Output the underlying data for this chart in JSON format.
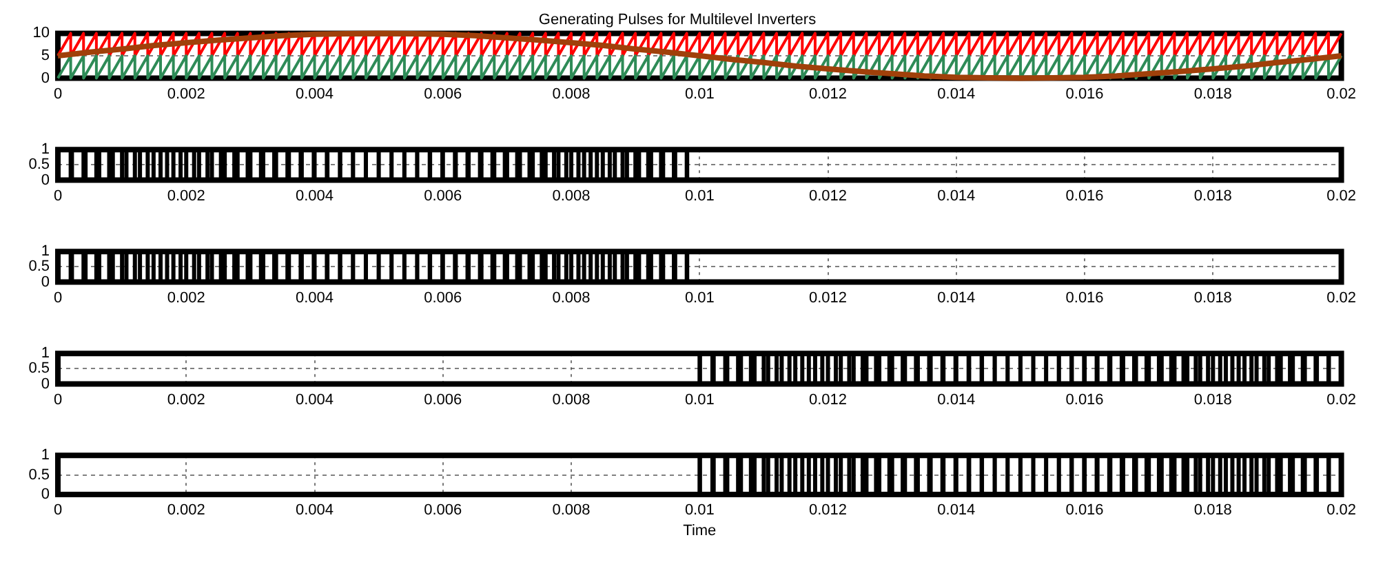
{
  "chart_data": [
    {
      "type": "line",
      "title": "Generating Pulses for Multilevel Inverters",
      "xlim": [
        0,
        0.02
      ],
      "xticks": [
        0,
        0.002,
        0.004,
        0.006,
        0.008,
        0.01,
        0.012,
        0.014,
        0.016,
        0.018,
        0.02
      ],
      "ylim": [
        0,
        10
      ],
      "yticks": [
        0,
        5,
        10
      ],
      "grid": true,
      "x": [
        0,
        0.0002,
        0.0002,
        0.0004,
        0.0004,
        0.0006,
        0.0006,
        0.0008,
        0.0008,
        0.001,
        0.001,
        0.0012,
        0.0012,
        0.0014,
        0.0014,
        0.0016,
        0.0016,
        0.0018,
        0.0018,
        0.002,
        0.002,
        0.0022,
        0.0022,
        0.0024,
        0.0024,
        0.0026,
        0.0026,
        0.0028,
        0.0028,
        0.003,
        0.003,
        0.0032,
        0.0032,
        0.0034,
        0.0034,
        0.0036,
        0.0036,
        0.0038,
        0.0038,
        0.004,
        0.004,
        0.0042,
        0.0042,
        0.0044,
        0.0044,
        0.0046,
        0.0046,
        0.0048,
        0.0048,
        0.005,
        0.005,
        0.0052,
        0.0052,
        0.0054,
        0.0054,
        0.0056,
        0.0056,
        0.0058,
        0.0058,
        0.006,
        0.006,
        0.0062,
        0.0062,
        0.0064,
        0.0064,
        0.0066,
        0.0066,
        0.0068,
        0.0068,
        0.007,
        0.007,
        0.0072,
        0.0072,
        0.0074,
        0.0074,
        0.0076,
        0.0076,
        0.0078,
        0.0078,
        0.008,
        0.008,
        0.0082,
        0.0082,
        0.0084,
        0.0084,
        0.0086,
        0.0086,
        0.0088,
        0.0088,
        0.009,
        0.009,
        0.0092,
        0.0092,
        0.0094,
        0.0094,
        0.0096,
        0.0096,
        0.0098,
        0.0098,
        0.01,
        0.01,
        0.0102,
        0.0102,
        0.0104,
        0.0104,
        0.0106,
        0.0106,
        0.0108,
        0.0108,
        0.011,
        0.011,
        0.0112,
        0.0112,
        0.0114,
        0.0114,
        0.0116,
        0.0116,
        0.0118,
        0.0118,
        0.012,
        0.012,
        0.0122,
        0.0122,
        0.0124,
        0.0124,
        0.0126,
        0.0126,
        0.0128,
        0.0128,
        0.013,
        0.013,
        0.0132,
        0.0132,
        0.0134,
        0.0134,
        0.0136,
        0.0136,
        0.0138,
        0.0138,
        0.014,
        0.014,
        0.0142,
        0.0142,
        0.0144,
        0.0144,
        0.0146,
        0.0146,
        0.0148,
        0.0148,
        0.015,
        0.015,
        0.0152,
        0.0152,
        0.0154,
        0.0154,
        0.0156,
        0.0156,
        0.0158,
        0.0158,
        0.016,
        0.016,
        0.0162,
        0.0162,
        0.0164,
        0.0164,
        0.0166,
        0.0166,
        0.0168,
        0.0168,
        0.017,
        0.017,
        0.0172,
        0.0172,
        0.0174,
        0.0174,
        0.0176,
        0.0176,
        0.0178,
        0.0178,
        0.018,
        0.018,
        0.0182,
        0.0182,
        0.0184,
        0.0184,
        0.0186,
        0.0186,
        0.0188,
        0.0188,
        0.019,
        0.019,
        0.0192,
        0.0192,
        0.0194,
        0.0194,
        0.0196,
        0.0196,
        0.0198,
        0.0198,
        0.02
      ],
      "series": [
        {
          "color": "#ff0000",
          "values": [
            5,
            10,
            5,
            10,
            5,
            10,
            5,
            10,
            5,
            10,
            5,
            10,
            5,
            10,
            5,
            10,
            5,
            10,
            5,
            10,
            5,
            10,
            5,
            10,
            5,
            10,
            5,
            10,
            5,
            10,
            5,
            10,
            5,
            10,
            5,
            10,
            5,
            10,
            5,
            10,
            5,
            10,
            5,
            10,
            5,
            10,
            5,
            10,
            5,
            10,
            5,
            10,
            5,
            10,
            5,
            10,
            5,
            10,
            5,
            10,
            5,
            10,
            5,
            10,
            5,
            10,
            5,
            10,
            5,
            10,
            5,
            10,
            5,
            10,
            5,
            10,
            5,
            10,
            5,
            10,
            5,
            10,
            5,
            10,
            5,
            10,
            5,
            10,
            5,
            10,
            5,
            10,
            5,
            10,
            5,
            10,
            5,
            10,
            5,
            10,
            5,
            10,
            5,
            10,
            5,
            10,
            5,
            10,
            5,
            10,
            5,
            10,
            5,
            10,
            5,
            10,
            5,
            10,
            5,
            10,
            5,
            10,
            5,
            10,
            5,
            10,
            5,
            10,
            5,
            10,
            5,
            10,
            5,
            10,
            5,
            10,
            5,
            10,
            5,
            10,
            5,
            10,
            5,
            10,
            5,
            10,
            5,
            10,
            5,
            10,
            5,
            10,
            5,
            10,
            5,
            10,
            5,
            10,
            5,
            10,
            5,
            10,
            5,
            10,
            5,
            10,
            5,
            10,
            5,
            10,
            5,
            10,
            5,
            10,
            5,
            10,
            5,
            10,
            5,
            10,
            5,
            10,
            5,
            10,
            5,
            10,
            5,
            10,
            5,
            10,
            5,
            10,
            5,
            10,
            5,
            10,
            5,
            10,
            5,
            10
          ]
        },
        {
          "color": "#2e8b57",
          "values": [
            0,
            5,
            0,
            5,
            0,
            5,
            0,
            5,
            0,
            5,
            0,
            5,
            0,
            5,
            0,
            5,
            0,
            5,
            0,
            5,
            0,
            5,
            0,
            5,
            0,
            5,
            0,
            5,
            0,
            5,
            0,
            5,
            0,
            5,
            0,
            5,
            0,
            5,
            0,
            5,
            0,
            5,
            0,
            5,
            0,
            5,
            0,
            5,
            0,
            5,
            0,
            5,
            0,
            5,
            0,
            5,
            0,
            5,
            0,
            5,
            0,
            5,
            0,
            5,
            0,
            5,
            0,
            5,
            0,
            5,
            0,
            5,
            0,
            5,
            0,
            5,
            0,
            5,
            0,
            5,
            0,
            5,
            0,
            5,
            0,
            5,
            0,
            5,
            0,
            5,
            0,
            5,
            0,
            5,
            0,
            5,
            0,
            5,
            0,
            5,
            0,
            5,
            0,
            5,
            0,
            5,
            0,
            5,
            0,
            5,
            0,
            5,
            0,
            5,
            0,
            5,
            0,
            5,
            0,
            5,
            0,
            5,
            0,
            5,
            0,
            5,
            0,
            5,
            0,
            5,
            0,
            5,
            0,
            5,
            0,
            5,
            0,
            5,
            0,
            5,
            0,
            5,
            0,
            5,
            0,
            5,
            0,
            5,
            0,
            5,
            0,
            5,
            0,
            5,
            0,
            5,
            0,
            5,
            0,
            5,
            0,
            5,
            0,
            5,
            0,
            5,
            0,
            5,
            0,
            5,
            0,
            5,
            0,
            5,
            0,
            5,
            0,
            5,
            0,
            5,
            0,
            5,
            0,
            5,
            0,
            5,
            0,
            5,
            0,
            5,
            0,
            5,
            0,
            5,
            0,
            5,
            0,
            5,
            0,
            5
          ]
        },
        {
          "color": "#a0400a",
          "x": [
            0,
            0.0005,
            0.001,
            0.0015,
            0.002,
            0.0025,
            0.003,
            0.0035,
            0.004,
            0.0045,
            0.005,
            0.0055,
            0.006,
            0.0065,
            0.007,
            0.0075,
            0.008,
            0.0085,
            0.009,
            0.0095,
            0.01,
            0.0105,
            0.011,
            0.0115,
            0.012,
            0.0125,
            0.013,
            0.0135,
            0.014,
            0.0145,
            0.015,
            0.0155,
            0.016,
            0.0165,
            0.017,
            0.0175,
            0.018,
            0.0185,
            0.019,
            0.0195,
            0.02
          ],
          "values": [
            5,
            5.8,
            6.5,
            7.3,
            7.9,
            8.5,
            9.0,
            9.5,
            9.8,
            9.9,
            10,
            9.9,
            9.8,
            9.5,
            9.0,
            8.5,
            7.9,
            7.3,
            6.5,
            5.8,
            5,
            4.2,
            3.5,
            2.7,
            2.1,
            1.5,
            1.0,
            0.5,
            0.2,
            0.1,
            0,
            0.1,
            0.2,
            0.5,
            1.0,
            1.5,
            2.1,
            2.7,
            3.5,
            4.2,
            5
          ]
        }
      ]
    },
    {
      "type": "step",
      "xlim": [
        0,
        0.02
      ],
      "xticks": [
        0,
        0.002,
        0.004,
        0.006,
        0.008,
        0.01,
        0.012,
        0.014,
        0.016,
        0.018,
        0.02
      ],
      "ylim": [
        0,
        1
      ],
      "yticks": [
        0,
        0.5,
        1
      ],
      "grid": true,
      "series": [
        {
          "color": "#000000",
          "x": [
            0,
            6e-06,
            0.0002,
            0.000219,
            0.0004,
            0.000431,
            0.0006,
            0.000644,
            0.0008,
            0.000856,
            0.001,
            0.001068,
            0.0012,
            0.001279,
            0.0014,
            0.001491,
            0.0016,
            0.001702,
            0.0018,
            0.001912,
            0.002,
            0.002123,
            0.0022,
            0.002332,
            0.0024,
            0.002541,
            0.0026,
            0.00275,
            0.0028,
            0.002958,
            0.003,
            0.003165,
            0.0032,
            0.003372,
            0.0034,
            0.003578,
            0.0036,
            0.003784,
            0.0038,
            0.003988,
            0.004,
            0.004192,
            0.0042,
            0.004395,
            0.0044,
            0.004598,
            0.0046,
            0.004799,
            0.0048,
            0.004999,
            0.005,
            0.005199,
            0.0052,
            0.005399,
            0.0054,
            0.005598,
            0.0056,
            0.005795,
            0.0058,
            0.005992,
            0.006,
            0.006188,
            0.0062,
            0.006384,
            0.0064,
            0.006578,
            0.0066,
            0.006772,
            0.0068,
            0.006965,
            0.007,
            0.007158,
            0.0072,
            0.00735,
            0.0074,
            0.007541,
            0.0076,
            0.007732,
            0.0078,
            0.007923,
            0.008,
            0.008112,
            0.0082,
            0.008302,
            0.0084,
            0.008491,
            0.0086,
            0.008679,
            0.0088,
            0.008868,
            0.009,
            0.009056,
            0.0092,
            0.009244,
            0.0094,
            0.009431,
            0.0096,
            0.009619,
            0.0098,
            0.009806,
            0.02
          ],
          "values": [
            1,
            0,
            1,
            0,
            1,
            0,
            1,
            0,
            1,
            0,
            1,
            0,
            1,
            0,
            1,
            0,
            1,
            0,
            1,
            0,
            1,
            0,
            1,
            0,
            1,
            0,
            1,
            0,
            1,
            0,
            1,
            0,
            1,
            0,
            1,
            0,
            1,
            0,
            1,
            0,
            1,
            0,
            1,
            0,
            1,
            0,
            1,
            0,
            1,
            0,
            1,
            0,
            1,
            0,
            1,
            0,
            1,
            0,
            1,
            0,
            1,
            0,
            1,
            0,
            1,
            0,
            1,
            0,
            1,
            0,
            1,
            0,
            1,
            0,
            1,
            0,
            1,
            0,
            1,
            0,
            1,
            0,
            1,
            0,
            1,
            0,
            1,
            0,
            1,
            0,
            1,
            0,
            1,
            0,
            1,
            0,
            1,
            0,
            1,
            0,
            0
          ]
        }
      ]
    },
    {
      "type": "step",
      "xlim": [
        0,
        0.02
      ],
      "xticks": [
        0,
        0.002,
        0.004,
        0.006,
        0.008,
        0.01,
        0.012,
        0.014,
        0.016,
        0.018,
        0.02
      ],
      "ylim": [
        0,
        1
      ],
      "yticks": [
        0,
        0.5,
        1
      ],
      "grid": true,
      "series": [
        {
          "color": "#000000",
          "x": [
            0,
            6e-06,
            0.0002,
            0.000219,
            0.0004,
            0.000431,
            0.0006,
            0.000644,
            0.0008,
            0.000856,
            0.001,
            0.001068,
            0.0012,
            0.001279,
            0.0014,
            0.001491,
            0.0016,
            0.001702,
            0.0018,
            0.001912,
            0.002,
            0.002123,
            0.0022,
            0.002332,
            0.0024,
            0.002541,
            0.0026,
            0.00275,
            0.0028,
            0.002958,
            0.003,
            0.003165,
            0.0032,
            0.003372,
            0.0034,
            0.003578,
            0.0036,
            0.003784,
            0.0038,
            0.003988,
            0.004,
            0.004192,
            0.0042,
            0.004395,
            0.0044,
            0.004598,
            0.0046,
            0.004799,
            0.0048,
            0.004999,
            0.005,
            0.005199,
            0.0052,
            0.005399,
            0.0054,
            0.005598,
            0.0056,
            0.005795,
            0.0058,
            0.005992,
            0.006,
            0.006188,
            0.0062,
            0.006384,
            0.0064,
            0.006578,
            0.0066,
            0.006772,
            0.0068,
            0.006965,
            0.007,
            0.007158,
            0.0072,
            0.00735,
            0.0074,
            0.007541,
            0.0076,
            0.007732,
            0.0078,
            0.007923,
            0.008,
            0.008112,
            0.0082,
            0.008302,
            0.0084,
            0.008491,
            0.0086,
            0.008679,
            0.0088,
            0.008868,
            0.009,
            0.009056,
            0.0092,
            0.009244,
            0.0094,
            0.009431,
            0.0096,
            0.009619,
            0.0098,
            0.009806,
            0.02
          ],
          "values": [
            1,
            0,
            1,
            0,
            1,
            0,
            1,
            0,
            1,
            0,
            1,
            0,
            1,
            0,
            1,
            0,
            1,
            0,
            1,
            0,
            1,
            0,
            1,
            0,
            1,
            0,
            1,
            0,
            1,
            0,
            1,
            0,
            1,
            0,
            1,
            0,
            1,
            0,
            1,
            0,
            1,
            0,
            1,
            0,
            1,
            0,
            1,
            0,
            1,
            0,
            1,
            0,
            1,
            0,
            1,
            0,
            1,
            0,
            1,
            0,
            1,
            0,
            1,
            0,
            1,
            0,
            1,
            0,
            1,
            0,
            1,
            0,
            1,
            0,
            1,
            0,
            1,
            0,
            1,
            0,
            1,
            0,
            1,
            0,
            1,
            0,
            1,
            0,
            1,
            0,
            1,
            0,
            1,
            0,
            1,
            0,
            1,
            0,
            1,
            0,
            0
          ]
        }
      ]
    },
    {
      "type": "step",
      "xlim": [
        0,
        0.02
      ],
      "xticks": [
        0,
        0.002,
        0.004,
        0.006,
        0.008,
        0.01,
        0.012,
        0.014,
        0.016,
        0.018,
        0.02
      ],
      "ylim": [
        0,
        1
      ],
      "yticks": [
        0,
        0.5,
        1
      ],
      "grid": true,
      "series": [
        {
          "color": "#000000",
          "x": [
            0,
            0.01,
            0.010006,
            0.0102,
            0.010219,
            0.0104,
            0.010431,
            0.0106,
            0.010644,
            0.0108,
            0.010856,
            0.011,
            0.011068,
            0.0112,
            0.011279,
            0.0114,
            0.011491,
            0.0116,
            0.011702,
            0.0118,
            0.011912,
            0.012,
            0.012123,
            0.0122,
            0.012332,
            0.0124,
            0.012541,
            0.0126,
            0.01275,
            0.0128,
            0.012958,
            0.013,
            0.013165,
            0.0132,
            0.013372,
            0.0134,
            0.013578,
            0.0136,
            0.013784,
            0.0138,
            0.013988,
            0.014,
            0.014192,
            0.0142,
            0.014395,
            0.0144,
            0.014598,
            0.0146,
            0.014799,
            0.0148,
            0.014999,
            0.015,
            0.015199,
            0.0152,
            0.015399,
            0.0154,
            0.015598,
            0.0156,
            0.015795,
            0.0158,
            0.015992,
            0.016,
            0.016188,
            0.0162,
            0.016384,
            0.0164,
            0.016578,
            0.0166,
            0.016772,
            0.0168,
            0.016965,
            0.017,
            0.017158,
            0.0172,
            0.01735,
            0.0174,
            0.017541,
            0.0176,
            0.017732,
            0.0178,
            0.017923,
            0.018,
            0.018112,
            0.0182,
            0.018302,
            0.0184,
            0.018491,
            0.0186,
            0.018679,
            0.0188,
            0.018868,
            0.019,
            0.019056,
            0.0192,
            0.019244,
            0.0194,
            0.019431,
            0.0196,
            0.019619,
            0.0198,
            0.019806,
            0.02
          ],
          "values": [
            0,
            1,
            0,
            1,
            0,
            1,
            0,
            1,
            0,
            1,
            0,
            1,
            0,
            1,
            0,
            1,
            0,
            1,
            0,
            1,
            0,
            1,
            0,
            1,
            0,
            1,
            0,
            1,
            0,
            1,
            0,
            1,
            0,
            1,
            0,
            1,
            0,
            1,
            0,
            1,
            0,
            1,
            0,
            1,
            0,
            1,
            0,
            1,
            0,
            1,
            0,
            1,
            0,
            1,
            0,
            1,
            0,
            1,
            0,
            1,
            0,
            1,
            0,
            1,
            0,
            1,
            0,
            1,
            0,
            1,
            0,
            1,
            0,
            1,
            0,
            1,
            0,
            1,
            0,
            1,
            0,
            1,
            0,
            1,
            0,
            1,
            0,
            1,
            0,
            1,
            0,
            1,
            0,
            1,
            0,
            1,
            0,
            1,
            0,
            1,
            0,
            0
          ]
        }
      ]
    },
    {
      "type": "step",
      "xlabel": "Time",
      "xlim": [
        0,
        0.02
      ],
      "xticks": [
        0,
        0.002,
        0.004,
        0.006,
        0.008,
        0.01,
        0.012,
        0.014,
        0.016,
        0.018,
        0.02
      ],
      "ylim": [
        0,
        1
      ],
      "yticks": [
        0,
        0.5,
        1
      ],
      "grid": true,
      "series": [
        {
          "color": "#000000",
          "x": [
            0,
            0.01,
            0.010006,
            0.0102,
            0.010219,
            0.0104,
            0.010431,
            0.0106,
            0.010644,
            0.0108,
            0.010856,
            0.011,
            0.011068,
            0.0112,
            0.011279,
            0.0114,
            0.011491,
            0.0116,
            0.011702,
            0.0118,
            0.011912,
            0.012,
            0.012123,
            0.0122,
            0.012332,
            0.0124,
            0.012541,
            0.0126,
            0.01275,
            0.0128,
            0.012958,
            0.013,
            0.013165,
            0.0132,
            0.013372,
            0.0134,
            0.013578,
            0.0136,
            0.013784,
            0.0138,
            0.013988,
            0.014,
            0.014192,
            0.0142,
            0.014395,
            0.0144,
            0.014598,
            0.0146,
            0.014799,
            0.0148,
            0.014999,
            0.015,
            0.015199,
            0.0152,
            0.015399,
            0.0154,
            0.015598,
            0.0156,
            0.015795,
            0.0158,
            0.015992,
            0.016,
            0.016188,
            0.0162,
            0.016384,
            0.0164,
            0.016578,
            0.0166,
            0.016772,
            0.0168,
            0.016965,
            0.017,
            0.017158,
            0.0172,
            0.01735,
            0.0174,
            0.017541,
            0.0176,
            0.017732,
            0.0178,
            0.017923,
            0.018,
            0.018112,
            0.0182,
            0.018302,
            0.0184,
            0.018491,
            0.0186,
            0.018679,
            0.0188,
            0.018868,
            0.019,
            0.019056,
            0.0192,
            0.019244,
            0.0194,
            0.019431,
            0.0196,
            0.019619,
            0.0198,
            0.019806,
            0.02
          ],
          "values": [
            0,
            1,
            0,
            1,
            0,
            1,
            0,
            1,
            0,
            1,
            0,
            1,
            0,
            1,
            0,
            1,
            0,
            1,
            0,
            1,
            0,
            1,
            0,
            1,
            0,
            1,
            0,
            1,
            0,
            1,
            0,
            1,
            0,
            1,
            0,
            1,
            0,
            1,
            0,
            1,
            0,
            1,
            0,
            1,
            0,
            1,
            0,
            1,
            0,
            1,
            0,
            1,
            0,
            1,
            0,
            1,
            0,
            1,
            0,
            1,
            0,
            1,
            0,
            1,
            0,
            1,
            0,
            1,
            0,
            1,
            0,
            1,
            0,
            1,
            0,
            1,
            0,
            1,
            0,
            1,
            0,
            1,
            0,
            1,
            0,
            1,
            0,
            1,
            0,
            1,
            0,
            1,
            0,
            1,
            0,
            1,
            0,
            1,
            0,
            1,
            0,
            0
          ]
        }
      ]
    }
  ]
}
